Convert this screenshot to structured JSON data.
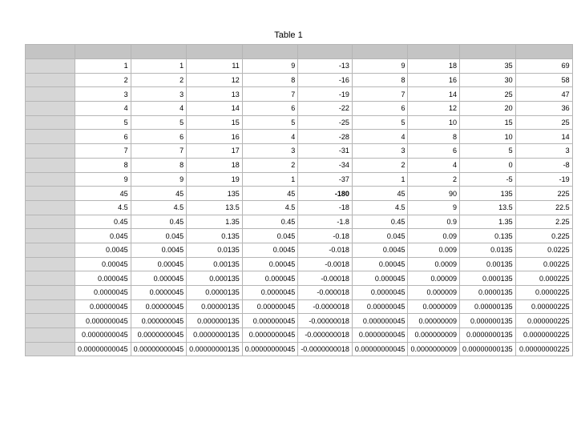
{
  "title": "Table 1",
  "header_row": [
    "",
    "",
    "",
    "",
    "",
    "",
    "",
    "",
    "",
    ""
  ],
  "rows": [
    [
      "",
      "1",
      "1",
      "11",
      "9",
      "-13",
      "9",
      "18",
      "35",
      "69"
    ],
    [
      "",
      "2",
      "2",
      "12",
      "8",
      "-16",
      "8",
      "16",
      "30",
      "58"
    ],
    [
      "",
      "3",
      "3",
      "13",
      "7",
      "-19",
      "7",
      "14",
      "25",
      "47"
    ],
    [
      "",
      "4",
      "4",
      "14",
      "6",
      "-22",
      "6",
      "12",
      "20",
      "36"
    ],
    [
      "",
      "5",
      "5",
      "15",
      "5",
      "-25",
      "5",
      "10",
      "15",
      "25"
    ],
    [
      "",
      "6",
      "6",
      "16",
      "4",
      "-28",
      "4",
      "8",
      "10",
      "14"
    ],
    [
      "",
      "7",
      "7",
      "17",
      "3",
      "-31",
      "3",
      "6",
      "5",
      "3"
    ],
    [
      "",
      "8",
      "8",
      "18",
      "2",
      "-34",
      "2",
      "4",
      "0",
      "-8"
    ],
    [
      "",
      "9",
      "9",
      "19",
      "1",
      "-37",
      "1",
      "2",
      "-5",
      "-19"
    ],
    [
      "",
      "45",
      "45",
      "135",
      "45",
      "-180",
      "45",
      "90",
      "135",
      "225"
    ],
    [
      "",
      "4.5",
      "4.5",
      "13.5",
      "4.5",
      "-18",
      "4.5",
      "9",
      "13.5",
      "22.5"
    ],
    [
      "",
      "0.45",
      "0.45",
      "1.35",
      "0.45",
      "-1.8",
      "0.45",
      "0.9",
      "1.35",
      "2.25"
    ],
    [
      "",
      "0.045",
      "0.045",
      "0.135",
      "0.045",
      "-0.18",
      "0.045",
      "0.09",
      "0.135",
      "0.225"
    ],
    [
      "",
      "0.0045",
      "0.0045",
      "0.0135",
      "0.0045",
      "-0.018",
      "0.0045",
      "0.009",
      "0.0135",
      "0.0225"
    ],
    [
      "",
      "0.00045",
      "0.00045",
      "0.00135",
      "0.00045",
      "-0.0018",
      "0.00045",
      "0.0009",
      "0.00135",
      "0.00225"
    ],
    [
      "",
      "0.000045",
      "0.000045",
      "0.000135",
      "0.000045",
      "-0.00018",
      "0.000045",
      "0.00009",
      "0.000135",
      "0.000225"
    ],
    [
      "",
      "0.0000045",
      "0.0000045",
      "0.0000135",
      "0.0000045",
      "-0.000018",
      "0.0000045",
      "0.000009",
      "0.0000135",
      "0.0000225"
    ],
    [
      "",
      "0.00000045",
      "0.00000045",
      "0.00000135",
      "0.00000045",
      "-0.0000018",
      "0.00000045",
      "0.0000009",
      "0.00000135",
      "0.00000225"
    ],
    [
      "",
      "0.000000045",
      "0.000000045",
      "0.000000135",
      "0.000000045",
      "-0.00000018",
      "0.000000045",
      "0.00000009",
      "0.000000135",
      "0.000000225"
    ],
    [
      "",
      "0.0000000045",
      "0.0000000045",
      "0.0000000135",
      "0.0000000045",
      "-0.000000018",
      "0.0000000045",
      "0.000000009",
      "0.0000000135",
      "0.0000000225"
    ],
    [
      "",
      "0.00000000045",
      "0.00000000045",
      "0.00000000135",
      "0.00000000045",
      "-0.0000000018",
      "0.00000000045",
      "0.0000000009",
      "0.00000000135",
      "0.00000000225"
    ]
  ],
  "bold_cells": [
    [
      9,
      5
    ]
  ]
}
